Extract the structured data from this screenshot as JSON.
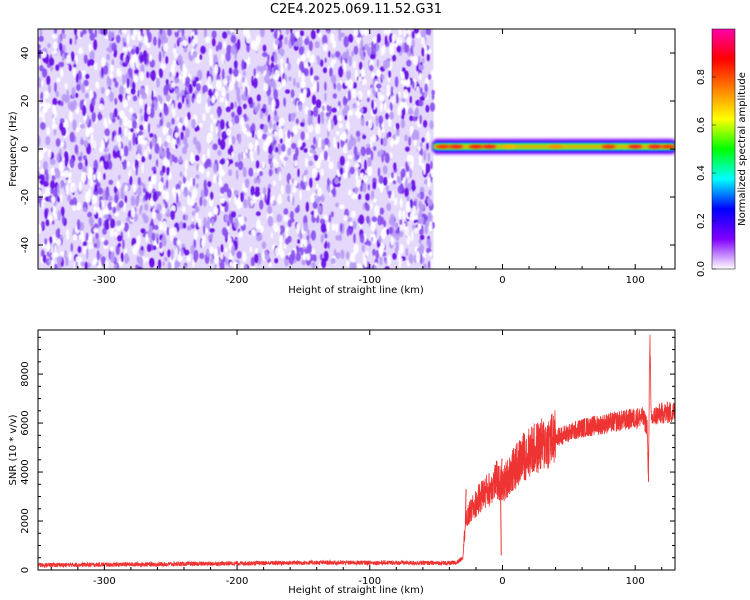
{
  "title": "C2E4.2025.069.11.52.G31",
  "chart_data": [
    {
      "type": "heatmap",
      "xlabel": "Height of straight line (km)",
      "ylabel": "Frequency (Hz)",
      "xlim": [
        -350,
        130
      ],
      "ylim": [
        -50,
        50
      ],
      "x_ticks": [
        -300,
        -200,
        -100,
        0,
        100
      ],
      "y_ticks": [
        -40,
        -20,
        0,
        20,
        40
      ],
      "colorbar": {
        "label": "Normalized spectral amplitude",
        "range": [
          0,
          1
        ],
        "ticks": [
          "0.0",
          "0.2",
          "0.4",
          "0.6",
          "0.8"
        ],
        "colors": [
          "#ffffff",
          "#8000ff",
          "#0000ff",
          "#00ffff",
          "#00ff00",
          "#ffff00",
          "#ff8000",
          "#ff0000",
          "#ff00aa"
        ]
      },
      "noise_region": {
        "x_range": [
          -350,
          -52
        ],
        "freq_range": [
          -50,
          50
        ],
        "typical_amplitude": 0.1
      },
      "signal_band": {
        "x_range": [
          -52,
          130
        ],
        "center_freq": 1,
        "width_hz": 4,
        "peak_amplitude": 0.9
      }
    },
    {
      "type": "line",
      "xlabel": "Height of straight line (km)",
      "ylabel": "SNR (10 * v/v)",
      "xlim": [
        -350,
        130
      ],
      "ylim": [
        0,
        9800
      ],
      "x_ticks": [
        -300,
        -200,
        -100,
        0,
        100
      ],
      "y_ticks": [
        0,
        2000,
        4000,
        6000,
        8000
      ],
      "series": [
        {
          "color": "#ee3333",
          "points": [
            [
              -350,
              200
            ],
            [
              -300,
              220
            ],
            [
              -250,
              240
            ],
            [
              -200,
              270
            ],
            [
              -150,
              300
            ],
            [
              -100,
              300
            ],
            [
              -60,
              290
            ],
            [
              -35,
              280
            ],
            [
              -30,
              500
            ],
            [
              -28,
              1900
            ],
            [
              -25,
              2300
            ],
            [
              -20,
              2700
            ],
            [
              -15,
              3100
            ],
            [
              -10,
              3300
            ],
            [
              -5,
              3700
            ],
            [
              0,
              3400
            ],
            [
              5,
              3900
            ],
            [
              10,
              4200
            ],
            [
              15,
              4600
            ],
            [
              20,
              4800
            ],
            [
              30,
              5100
            ],
            [
              40,
              5400
            ],
            [
              50,
              5600
            ],
            [
              60,
              5800
            ],
            [
              70,
              5900
            ],
            [
              80,
              6000
            ],
            [
              90,
              6100
            ],
            [
              100,
              6200
            ],
            [
              105,
              6250
            ],
            [
              109,
              5900
            ],
            [
              110,
              3700
            ],
            [
              111,
              9800
            ],
            [
              112,
              6100
            ],
            [
              115,
              6300
            ],
            [
              120,
              6400
            ],
            [
              130,
              6450
            ]
          ]
        }
      ]
    }
  ]
}
